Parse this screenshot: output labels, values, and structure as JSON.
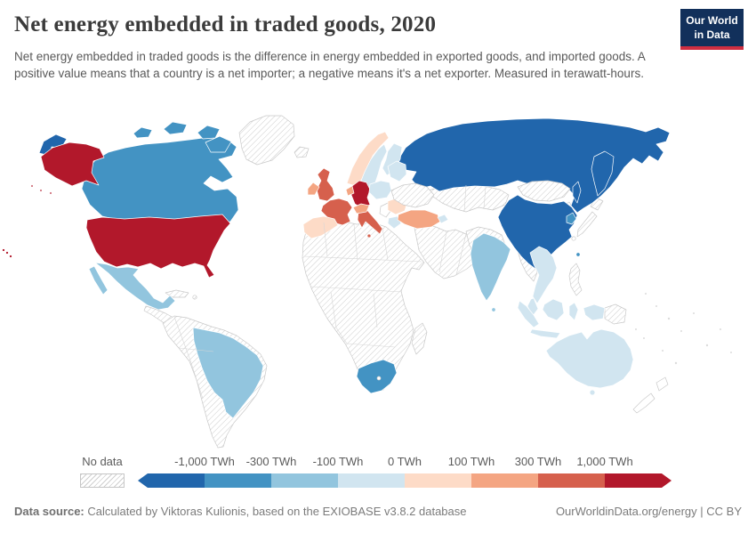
{
  "header": {
    "title": "Net energy embedded in traded goods, 2020",
    "subtitle": "Net energy embedded in traded goods is the difference in energy embedded in exported goods, and imported goods. A positive value means that a country is a net importer; a negative means it's a net exporter. Measured in terawatt-hours.",
    "logo": {
      "line1": "Our World",
      "line2": "in Data",
      "bg": "#12305b",
      "accent": "#cf2e41"
    }
  },
  "legend": {
    "no_data_label": "No data",
    "ticks": [
      "-1,000 TWh",
      "-300 TWh",
      "-100 TWh",
      "0 TWh",
      "100 TWh",
      "300 TWh",
      "1,000 TWh"
    ],
    "colors": [
      "#2166ac",
      "#4393c3",
      "#92c5de",
      "#d1e5f0",
      "#fddbc7",
      "#f4a582",
      "#d6604d",
      "#b2182b"
    ]
  },
  "footer": {
    "source_label": "Data source:",
    "source_text": " Calculated by Viktoras Kulionis, based on the EXIOBASE v3.8.2 database",
    "right_text": "OurWorldinData.org/energy | CC BY"
  },
  "map": {
    "ocean": "#ffffff",
    "border_color_no_data": "#c9c9c9",
    "border_color_colored": "#ffffff",
    "region_fills": {
      "russia": "#2166ac",
      "china": "#2166ac",
      "chukotka": "#2166ac",
      "kamchatka": "#2166ac",
      "sakhalin": "#2166ac",
      "canada": "#4393c3",
      "south_africa": "#4393c3",
      "south_korea": "#4393c3",
      "taiwan": "#4393c3",
      "mexico": "#92c5de",
      "brazil": "#92c5de",
      "india": "#92c5de",
      "sri_lanka": "#92c5de",
      "sweden": "#d1e5f0",
      "finland": "#d1e5f0",
      "poland_czech": "#d1e5f0",
      "baltics_belarus": "#d1e5f0",
      "greece": "#d1e5f0",
      "caucasus": "#d1e5f0",
      "indochina": "#d1e5f0",
      "malay": "#d1e5f0",
      "indonesia": "#d1e5f0",
      "australia": "#d1e5f0",
      "tasmania": "#d1e5f0",
      "norway": "#fddbc7",
      "denmark": "#fddbc7",
      "iberia": "#fddbc7",
      "romania_bulgaria": "#fddbc7",
      "ireland": "#f4a582",
      "benelux": "#f4a582",
      "alpine": "#f4a582",
      "turkey": "#f4a582",
      "united_kingdom": "#d6604d",
      "france": "#d6604d",
      "italy": "#d6604d",
      "united_states": "#b2182b",
      "alaska": "#b2182b",
      "germany": "#b2182b",
      "hawaii": "#b2182b"
    }
  },
  "chart_data": {
    "type": "choropleth",
    "title": "Net energy embedded in traded goods, 2020",
    "unit": "TWh",
    "legend_position": "bottom",
    "no_data_pattern": "diagonal-hatch",
    "bins": [
      {
        "label": "< -1,000 TWh",
        "color": "#2166ac",
        "countries": [
          "Russia",
          "China"
        ]
      },
      {
        "label": "-1,000 to -300 TWh",
        "color": "#4393c3",
        "countries": [
          "Canada",
          "South Africa",
          "South Korea",
          "Taiwan"
        ]
      },
      {
        "label": "-300 to -100 TWh",
        "color": "#92c5de",
        "countries": [
          "Mexico",
          "Brazil",
          "India",
          "Sri Lanka"
        ]
      },
      {
        "label": "-100 to 0 TWh",
        "color": "#d1e5f0",
        "countries": [
          "Australia",
          "Indonesia",
          "Sweden",
          "Finland",
          "Poland",
          "Greece",
          "Thailand",
          "Vietnam",
          "Malaysia"
        ]
      },
      {
        "label": "0 to 100 TWh",
        "color": "#fddbc7",
        "countries": [
          "Spain",
          "Portugal",
          "Norway",
          "Denmark",
          "Romania"
        ]
      },
      {
        "label": "100 to 300 TWh",
        "color": "#f4a582",
        "countries": [
          "Ireland",
          "Turkey",
          "Netherlands",
          "Austria",
          "Switzerland"
        ]
      },
      {
        "label": "300 to 1,000 TWh",
        "color": "#d6604d",
        "countries": [
          "United Kingdom",
          "France",
          "Italy"
        ]
      },
      {
        "label": "> 1,000 TWh",
        "color": "#b2182b",
        "countries": [
          "United States",
          "Germany"
        ]
      }
    ],
    "no_data_regions": [
      "Greenland",
      "Iceland",
      "Ukraine",
      "Kazakhstan",
      "Central Asia",
      "Mongolia",
      "Japan",
      "North Korea",
      "Middle East",
      "Most of Africa",
      "Madagascar",
      "Most of South America",
      "Central America",
      "Caribbean",
      "Myanmar",
      "Philippines",
      "Papua New Guinea",
      "New Zealand"
    ]
  }
}
